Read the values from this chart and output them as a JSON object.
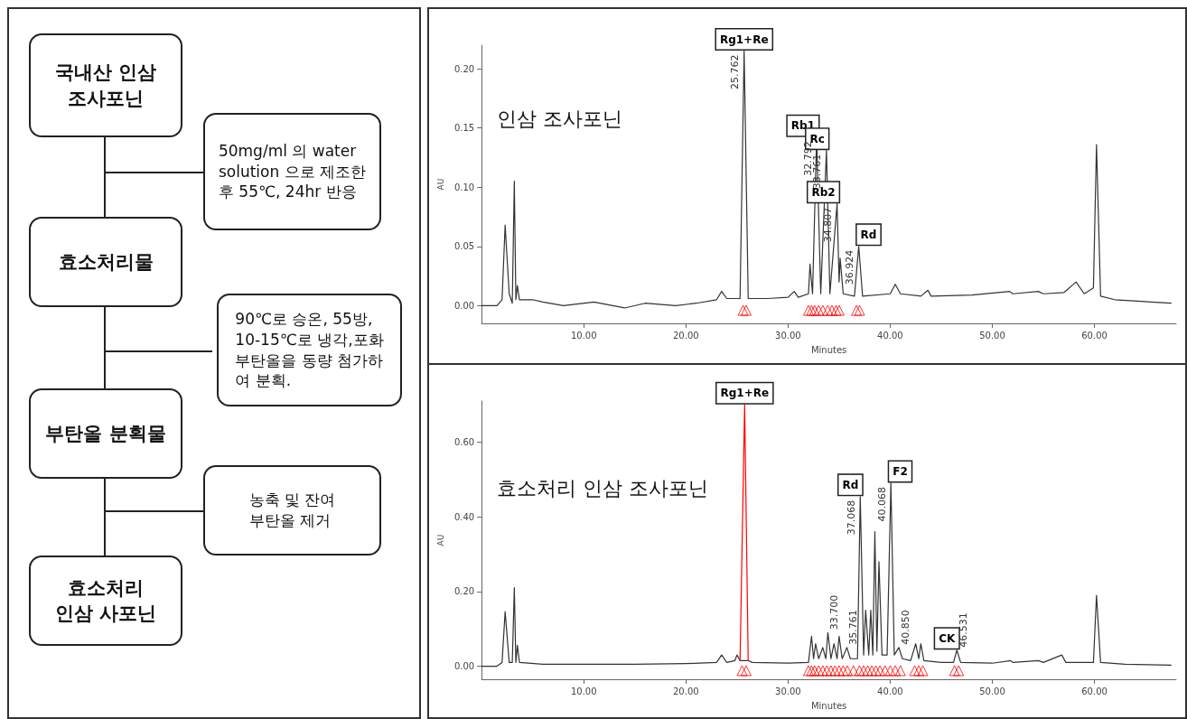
{
  "chart_data": [
    {
      "type": "other",
      "annotations": [
        "국내산 인삼\n조사포닌",
        "50mg/ml 의 water\nsolution 으로 제조한\n후 55℃, 24hr 반응",
        "효소처리물",
        "90℃로 승온, 55방,\n10-15℃로 냉각,포화\n부탄올을 동량 첨가하\n여 분획.",
        "부탄올 분획물",
        "농축 및 잔여\n부탄올 제거",
        "효소처리\n인삼 사포닌"
      ]
    },
    {
      "type": "line",
      "title": "인삼 조사포닌",
      "xlabel": "Minutes",
      "ylabel": "AU",
      "xlim": [
        0,
        68
      ],
      "ylim": [
        -0.015,
        0.22
      ],
      "xticks": [
        {
          "value": 10,
          "label": "10.00"
        },
        {
          "value": 20,
          "label": "20.00"
        },
        {
          "value": 30,
          "label": "30.00"
        },
        {
          "value": 40,
          "label": "40.00"
        },
        {
          "value": 50,
          "label": "50.00"
        },
        {
          "value": 60,
          "label": "60.00"
        }
      ],
      "yticks": [
        {
          "value": 0,
          "label": "0.00"
        },
        {
          "value": 0.05,
          "label": "0.05"
        },
        {
          "value": 0.1,
          "label": "0.10"
        },
        {
          "value": 0.15,
          "label": "0.15"
        },
        {
          "value": 0.2,
          "label": "0.20"
        }
      ],
      "series": [
        {
          "type": "line",
          "marker": "none",
          "color": "#333333",
          "x": [
            0,
            1.5,
            2.0,
            2.3,
            2.7,
            3.0,
            3.2,
            3.35,
            3.5,
            3.7,
            5,
            6,
            8,
            11,
            14,
            16,
            19,
            21,
            23,
            23.5,
            24,
            25.3,
            25.7,
            26.1,
            28,
            30,
            30.6,
            31,
            32,
            32.15,
            32.4,
            32.8,
            33.2,
            33.76,
            34.1,
            34.8,
            35.0,
            35.1,
            35.4,
            36.5,
            36.92,
            37.3,
            40,
            40.5,
            41,
            43,
            43.7,
            44,
            48,
            51.7,
            52,
            54.5,
            55,
            57,
            58.2,
            59,
            59.9,
            60.2,
            60.6,
            62,
            67.5
          ],
          "values": [
            0,
            0,
            0.005,
            0.068,
            0.01,
            0.002,
            0.105,
            0.005,
            0.017,
            0.005,
            0.005,
            0.003,
            0,
            0.003,
            -0.002,
            0.002,
            0,
            0.002,
            0.005,
            0.012,
            0.006,
            0.006,
            0.215,
            0.006,
            0.006,
            0.007,
            0.012,
            0.007,
            0.01,
            0.035,
            0.01,
            0.142,
            0.01,
            0.131,
            0.01,
            0.086,
            0.02,
            0.04,
            0.01,
            0.008,
            0.05,
            0.008,
            0.01,
            0.018,
            0.01,
            0.008,
            0.013,
            0.008,
            0.009,
            0.012,
            0.01,
            0.012,
            0.01,
            0.011,
            0.02,
            0.01,
            0.015,
            0.136,
            0.008,
            0.005,
            0.002
          ]
        },
        {
          "type": "scatter",
          "marker": "triangle",
          "color": "#ff0000",
          "x": [
            25.6,
            25.9,
            32.0,
            32.3,
            32.6,
            33.0,
            33.4,
            33.9,
            34.3,
            34.7,
            35.0,
            36.7,
            37.0
          ],
          "values": [
            -0.004,
            -0.004,
            -0.004,
            -0.004,
            -0.004,
            -0.004,
            -0.004,
            -0.004,
            -0.004,
            -0.004,
            -0.004,
            -0.004,
            -0.004
          ]
        }
      ],
      "annotations": [
        {
          "text": "Rg1+Re",
          "x": 25.7,
          "y": 0.215
        },
        {
          "text": "Rb1",
          "x": 32.8,
          "y": 0.142
        },
        {
          "text": "Rc",
          "x": 33.76,
          "y": 0.131
        },
        {
          "text": "Rb2",
          "x": 34.8,
          "y": 0.086
        },
        {
          "text": "Rd",
          "x": 36.92,
          "y": 0.05
        },
        {
          "text": "25.762",
          "x": 25.7,
          "y": 0.215
        },
        {
          "text": "32.792",
          "x": 32.8,
          "y": 0.142
        },
        {
          "text": "33.761",
          "x": 33.76,
          "y": 0.131
        },
        {
          "text": "34.807",
          "x": 34.8,
          "y": 0.086
        },
        {
          "text": "36.924",
          "x": 36.92,
          "y": 0.05
        }
      ]
    },
    {
      "type": "line",
      "title": "효소처리 인삼 조사포닌",
      "xlabel": "Minutes",
      "ylabel": "AU",
      "xlim": [
        0,
        68
      ],
      "ylim": [
        -0.035,
        0.71
      ],
      "xticks": [
        {
          "value": 10,
          "label": "10.00"
        },
        {
          "value": 20,
          "label": "20.00"
        },
        {
          "value": 30,
          "label": "30.00"
        },
        {
          "value": 40,
          "label": "40.00"
        },
        {
          "value": 50,
          "label": "50.00"
        },
        {
          "value": 60,
          "label": "60.00"
        }
      ],
      "yticks": [
        {
          "value": 0,
          "label": "0.00"
        },
        {
          "value": 0.2,
          "label": "0.20"
        },
        {
          "value": 0.4,
          "label": "0.40"
        },
        {
          "value": 0.6,
          "label": "0.60"
        }
      ],
      "series": [
        {
          "type": "line",
          "marker": "none",
          "color": "#333333",
          "x": [
            0,
            1.5,
            2.0,
            2.3,
            2.7,
            3.0,
            3.2,
            3.35,
            3.5,
            3.7,
            6,
            10,
            15,
            20,
            23,
            23.5,
            24,
            24.8,
            25,
            25.3,
            26.1,
            26.5,
            30,
            32,
            32.3,
            32.5,
            32.7,
            33,
            33.4,
            33.7,
            33.9,
            34.2,
            34.5,
            34.8,
            35.0,
            35.3,
            35.76,
            36.1,
            36.8,
            37.07,
            37.4,
            37.6,
            37.9,
            38.1,
            38.3,
            38.5,
            38.7,
            38.9,
            39.2,
            39.7,
            40.07,
            40.4,
            40.85,
            41.2,
            42,
            42.5,
            42.8,
            43.0,
            43.3,
            45,
            46.2,
            46.53,
            46.9,
            50,
            51.8,
            52,
            54.5,
            55,
            56.8,
            57.2,
            59.9,
            60.2,
            60.6,
            63,
            67.5
          ],
          "values": [
            0,
            0,
            0.01,
            0.146,
            0.01,
            0.01,
            0.21,
            0.01,
            0.056,
            0.01,
            0.005,
            0.005,
            0.005,
            0.007,
            0.01,
            0.03,
            0.01,
            0.015,
            0.03,
            0.015,
            0.015,
            0.01,
            0.008,
            0.01,
            0.08,
            0.02,
            0.06,
            0.02,
            0.05,
            0.02,
            0.09,
            0.02,
            0.06,
            0.02,
            0.08,
            0.02,
            0.05,
            0.02,
            0.02,
            0.454,
            0.03,
            0.15,
            0.03,
            0.15,
            0.03,
            0.36,
            0.04,
            0.28,
            0.03,
            0.03,
            0.49,
            0.03,
            0.05,
            0.02,
            0.015,
            0.06,
            0.02,
            0.06,
            0.015,
            0.01,
            0.01,
            0.043,
            0.01,
            0.008,
            0.015,
            0.01,
            0.015,
            0.01,
            0.03,
            0.01,
            0.01,
            0.19,
            0.01,
            0.005,
            0.003
          ]
        },
        {
          "type": "line",
          "marker": "none",
          "color": "#ff0000",
          "x": [
            25.3,
            25.75,
            26.1
          ],
          "values": [
            0.015,
            0.7,
            0.015
          ]
        },
        {
          "type": "scatter",
          "marker": "triangle",
          "color": "#ff0000",
          "x": [
            25.5,
            25.9,
            32.0,
            32.3,
            32.6,
            33.0,
            33.4,
            33.8,
            34.2,
            34.6,
            35.0,
            35.4,
            35.8,
            36.4,
            37.0,
            37.4,
            37.8,
            38.2,
            38.6,
            39.0,
            39.5,
            40.0,
            40.5,
            41.0,
            42.4,
            42.8,
            43.2,
            46.3,
            46.7
          ],
          "values": [
            -0.012,
            -0.012,
            -0.012,
            -0.012,
            -0.012,
            -0.012,
            -0.012,
            -0.012,
            -0.012,
            -0.012,
            -0.012,
            -0.012,
            -0.012,
            -0.012,
            -0.012,
            -0.012,
            -0.012,
            -0.012,
            -0.012,
            -0.012,
            -0.012,
            -0.012,
            -0.012,
            -0.012,
            -0.012,
            -0.012,
            -0.012,
            -0.012,
            -0.012
          ]
        }
      ],
      "annotations": [
        {
          "text": "Rg1+Re",
          "x": 25.75,
          "y": 0.7
        },
        {
          "text": "Rd",
          "x": 37.07,
          "y": 0.454
        },
        {
          "text": "F2",
          "x": 40.07,
          "y": 0.49
        },
        {
          "text": "CK",
          "x": 46.53,
          "y": 0.043
        },
        {
          "text": "37.068",
          "x": 37.07,
          "y": 0.454
        },
        {
          "text": "40.068",
          "x": 40.07,
          "y": 0.49
        },
        {
          "text": "33.700",
          "x": 33.9,
          "y": 0.09
        },
        {
          "text": "35.761",
          "x": 35.76,
          "y": 0.05
        },
        {
          "text": "40.850",
          "x": 40.85,
          "y": 0.05
        },
        {
          "text": "46.531",
          "x": 46.53,
          "y": 0.043
        }
      ]
    }
  ]
}
